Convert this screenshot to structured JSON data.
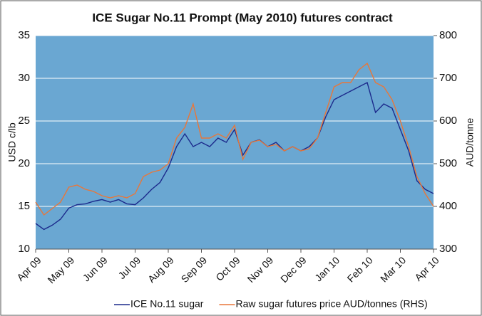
{
  "chart_data": {
    "type": "line",
    "title": "ICE Sugar No.11 Prompt (May 2010) futures contract",
    "y_label": "USD c/lb",
    "y2_label": "AUD/tonne",
    "categories": [
      "Apr 09",
      null,
      null,
      null,
      "May 09",
      null,
      null,
      null,
      "Jun 09",
      null,
      null,
      null,
      "Jul 09",
      null,
      null,
      null,
      "Aug 09",
      null,
      null,
      null,
      "Sep 09",
      null,
      null,
      null,
      "Oct 09",
      null,
      null,
      null,
      "Nov 09",
      null,
      null,
      null,
      "Dec 09",
      null,
      null,
      null,
      "Jan 10",
      null,
      null,
      null,
      "Feb 10",
      null,
      null,
      null,
      "Mar 10",
      null,
      null,
      null,
      "Apr 10"
    ],
    "series": [
      {
        "name": "ICE No.11 sugar",
        "color": "#1c2a8c",
        "values": [
          13,
          12.3,
          12.8,
          13.5,
          14.8,
          15.2,
          15.3,
          15.6,
          15.8,
          15.5,
          15.8,
          15.3,
          15.2,
          16,
          17,
          17.8,
          19.5,
          22,
          23.5,
          22,
          22.5,
          22,
          23,
          22.5,
          24,
          21,
          22.5,
          22.8,
          22,
          22.5,
          21.5,
          22,
          21.5,
          22,
          23,
          25.5,
          27.5,
          28,
          28.5,
          29,
          29.5,
          26,
          27,
          26.5,
          24,
          21.5,
          18,
          17,
          16.5
        ]
      },
      {
        "name": "Raw sugar futures price AUD/tonnes (RHS)",
        "color": "#e8773a",
        "axis": "y2",
        "values": [
          410,
          380,
          395,
          410,
          445,
          450,
          440,
          435,
          425,
          420,
          425,
          420,
          430,
          470,
          480,
          485,
          500,
          560,
          585,
          640,
          560,
          560,
          570,
          560,
          590,
          510,
          550,
          555,
          540,
          545,
          530,
          540,
          530,
          535,
          560,
          620,
          680,
          690,
          690,
          720,
          735,
          690,
          680,
          650,
          600,
          540,
          470,
          430,
          400
        ]
      }
    ],
    "ylim": [
      10,
      35
    ],
    "yticks": [
      10,
      15,
      20,
      25,
      30,
      35
    ],
    "y2lim": [
      300,
      800
    ],
    "y2ticks": [
      300,
      400,
      500,
      600,
      700,
      800
    ],
    "grid": true,
    "plot_color": "#6aa7d2",
    "legend": "bottom"
  }
}
